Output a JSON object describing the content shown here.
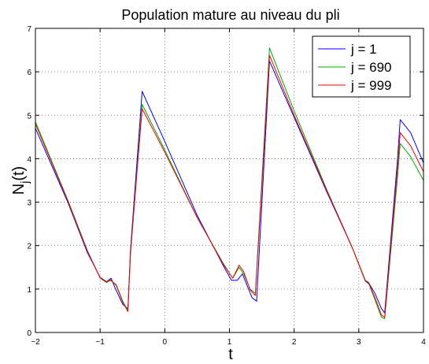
{
  "chart_data": {
    "type": "line",
    "title": "Population mature au niveau du pli",
    "xlabel": "t",
    "ylabel": {
      "base": "N",
      "subscript": "j",
      "suffix": "(t)"
    },
    "xlim": [
      -2,
      4
    ],
    "ylim": [
      0,
      7
    ],
    "xticks": [
      -2,
      -1,
      0,
      1,
      2,
      3,
      4
    ],
    "yticks": [
      0,
      1,
      2,
      3,
      4,
      5,
      6,
      7
    ],
    "grid": true,
    "legend_position": "top-right",
    "series": [
      {
        "name": "j = 1",
        "color": "#0000ff",
        "x": [
          -2,
          -1.5,
          -1.2,
          -1.0,
          -0.9,
          -0.83,
          -0.76,
          -0.65,
          -0.57,
          -0.53,
          -0.35,
          0.0,
          0.5,
          0.9,
          1.03,
          1.12,
          1.2,
          1.35,
          1.42,
          1.62,
          2.0,
          2.5,
          2.9,
          3.1,
          3.15,
          3.25,
          3.35,
          3.4,
          3.6,
          3.64,
          3.8,
          4.0
        ],
        "y": [
          4.7,
          3.0,
          1.85,
          1.27,
          1.17,
          1.25,
          1.0,
          0.65,
          0.55,
          1.9,
          5.55,
          4.4,
          2.7,
          1.55,
          1.2,
          1.2,
          1.35,
          0.8,
          0.72,
          6.25,
          4.95,
          3.25,
          1.95,
          1.2,
          1.15,
          0.9,
          0.55,
          0.45,
          4.0,
          4.9,
          4.6,
          3.9
        ]
      },
      {
        "name": "j = 690",
        "color": "#00aa00",
        "x": [
          -2,
          -1.5,
          -1.2,
          -1.0,
          -0.9,
          -0.84,
          -0.75,
          -0.65,
          -0.57,
          -0.53,
          -0.35,
          0.0,
          0.5,
          0.9,
          1.05,
          1.15,
          1.22,
          1.32,
          1.4,
          1.62,
          2.0,
          2.5,
          2.9,
          3.1,
          3.16,
          3.25,
          3.35,
          3.4,
          3.6,
          3.64,
          3.8,
          4.0
        ],
        "y": [
          4.85,
          3.05,
          1.9,
          1.25,
          1.15,
          1.2,
          1.1,
          0.72,
          0.5,
          1.8,
          5.25,
          4.2,
          2.65,
          1.6,
          1.25,
          1.5,
          1.35,
          1.0,
          0.9,
          6.55,
          5.1,
          3.3,
          1.95,
          1.2,
          1.1,
          0.75,
          0.35,
          0.32,
          3.6,
          4.35,
          4.05,
          3.5
        ]
      },
      {
        "name": "j = 999",
        "color": "#ff0000",
        "x": [
          -2,
          -1.5,
          -1.2,
          -1.0,
          -0.9,
          -0.84,
          -0.75,
          -0.65,
          -0.57,
          -0.53,
          -0.35,
          0.0,
          0.5,
          0.9,
          1.05,
          1.15,
          1.22,
          1.32,
          1.4,
          1.62,
          2.0,
          2.5,
          2.9,
          3.1,
          3.16,
          3.25,
          3.35,
          3.4,
          3.6,
          3.64,
          3.8,
          4.0
        ],
        "y": [
          4.8,
          3.03,
          1.88,
          1.26,
          1.16,
          1.22,
          1.08,
          0.7,
          0.48,
          1.85,
          5.15,
          4.15,
          2.65,
          1.58,
          1.25,
          1.55,
          1.4,
          0.98,
          0.85,
          6.38,
          5.0,
          3.28,
          1.95,
          1.18,
          1.12,
          0.8,
          0.4,
          0.35,
          3.8,
          4.6,
          4.3,
          3.7
        ]
      }
    ]
  }
}
